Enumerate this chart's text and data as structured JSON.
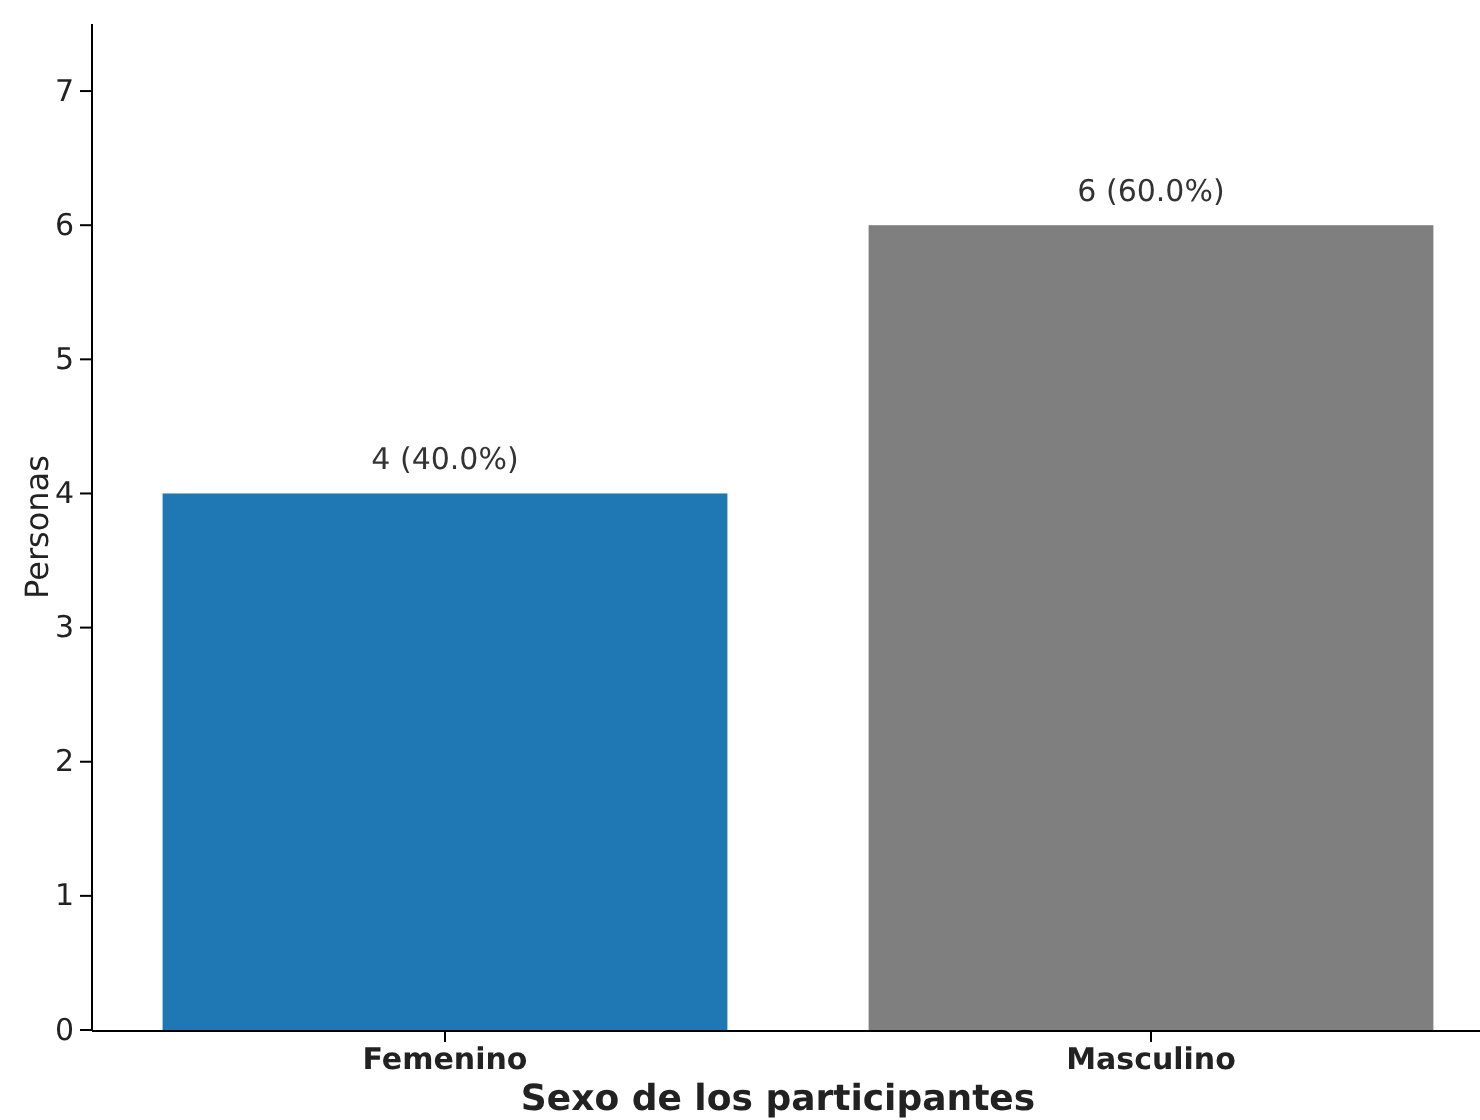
{
  "chart_data": {
    "type": "bar",
    "xlabel": "Sexo de los participantes",
    "ylabel": "Personas",
    "categories": [
      "Femenino",
      "Masculino"
    ],
    "values": [
      4,
      6
    ],
    "colors": [
      "#1f77b4",
      "#7f7f7f"
    ],
    "value_labels": [
      "4 (40.0%)",
      "6 (60.0%)"
    ],
    "ylim": [
      0,
      7.5
    ],
    "yticks": [
      0,
      1,
      2,
      3,
      4,
      5,
      6,
      7
    ],
    "grid": false
  }
}
